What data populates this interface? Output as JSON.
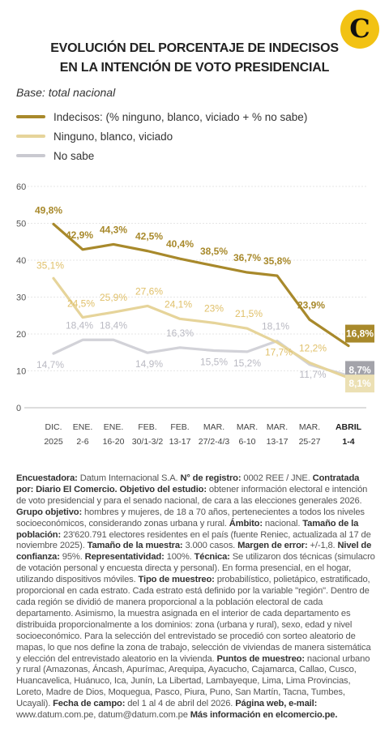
{
  "logo": {
    "letter": "C"
  },
  "title": {
    "line1": "EVOLUCIÓN DEL PORCENTAJE DE INDECISOS",
    "line2": "EN LA INTENCIÓN DE VOTO PRESIDENCIAL"
  },
  "base": "Base: total nacional",
  "legend": [
    {
      "label": "Indecisos: (% ninguno, blanco, viciado + % no sabe)",
      "color": "#a8892b"
    },
    {
      "label": "Ninguno, blanco, viciado",
      "color": "#e6d49a"
    },
    {
      "label": "No sabe",
      "color": "#c9c9d0"
    }
  ],
  "chart_data": {
    "type": "line",
    "y_ticks": [
      "60",
      "50",
      "40",
      "30",
      "20",
      "10",
      "0"
    ],
    "ylim": [
      0,
      60
    ],
    "x": [
      {
        "line1": "DIC.",
        "line2": "2025"
      },
      {
        "line1": "ENE.",
        "line2": "2-6"
      },
      {
        "line1": "ENE.",
        "line2": "16-20"
      },
      {
        "line1": "FEB.",
        "line2": "30/1-3/2"
      },
      {
        "line1": "FEB.",
        "line2": "13-17"
      },
      {
        "line1": "MAR.",
        "line2": "27/2-4/3"
      },
      {
        "line1": "MAR.",
        "line2": "6-10"
      },
      {
        "line1": "MAR.",
        "line2": "13-17"
      },
      {
        "line1": "MAR.",
        "line2": "25-27"
      },
      {
        "line1": "ABRIL",
        "line2": "1-4"
      }
    ],
    "series": [
      {
        "key": "indecisos",
        "color": "#a8892b",
        "label_color": "#a8892b",
        "values": [
          49.8,
          42.9,
          44.3,
          42.5,
          40.4,
          38.5,
          36.7,
          35.8,
          23.9,
          16.8
        ],
        "labels": [
          "49,8%",
          "42,9%",
          "44,3%",
          "42,5%",
          "40,4%",
          "38,5%",
          "36,7%",
          "35,8%",
          "23,9%",
          "16,8%"
        ]
      },
      {
        "key": "ninguno",
        "color": "#e6d49a",
        "label_color": "#e0c06a",
        "values": [
          35.1,
          24.5,
          25.9,
          27.6,
          24.1,
          23.0,
          21.5,
          17.7,
          12.2,
          8.1
        ],
        "labels": [
          "35,1%",
          "24,5%",
          "25,9%",
          "27,6%",
          "24,1%",
          "23%",
          "21,5%",
          "17,7%",
          "12,2%",
          "8,1%"
        ]
      },
      {
        "key": "nosabe",
        "color": "#d2d2d8",
        "label_color": "#b9b9c2",
        "values": [
          14.7,
          18.4,
          18.4,
          14.9,
          16.3,
          15.5,
          15.2,
          18.1,
          11.7,
          8.7
        ],
        "labels": [
          "14,7%",
          "18,4%",
          "18,4%",
          "14,9%",
          "16,3%",
          "15,5%",
          "15,2%",
          "18,1%",
          "11,7%",
          "8,7%"
        ]
      }
    ],
    "final_boxes": [
      {
        "label": "16,8%",
        "bg": "#a8892b",
        "fg": "#ffffff"
      },
      {
        "label": "8,7%",
        "bg": "#a3a3aa",
        "fg": "#ffffff"
      },
      {
        "label": "8,1%",
        "bg": "#ece0b4",
        "fg": "#ffffff"
      }
    ]
  },
  "footer": [
    {
      "b": "Encuestadora:",
      "t": " Datum Internacional S.A. "
    },
    {
      "b": "N° de registro:",
      "t": " 0002 REE / JNE. "
    },
    {
      "b": "Contratada por: Diario El Comercio.",
      "t": " "
    },
    {
      "b": "Objetivo del estudio:",
      "t": " obtener información electoral e intención de voto presidencial y para el senado nacional, de cara a las elecciones generales 2026. "
    },
    {
      "b": "Grupo objetivo:",
      "t": " hombres y mujeres, de 18 a 70 años, pertenecientes a todos los niveles socioeconómicos, considerando zonas urbana y rural. "
    },
    {
      "b": "Ámbito:",
      "t": " nacional. "
    },
    {
      "b": "Tamaño de la población:",
      "t": " 23'620.791 electores residentes en el país (fuente Reniec, actualizada al 17 de noviembre 2025). "
    },
    {
      "b": "Tamaño de la muestra:",
      "t": " 3.000 casos. "
    },
    {
      "b": "Margen de error:",
      "t": " +/-1,8. "
    },
    {
      "b": "Nivel de confianza:",
      "t": " 95%. "
    },
    {
      "b": "Representatividad:",
      "t": " 100%. "
    },
    {
      "b": "Técnica:",
      "t": " Se utilizaron dos técnicas (simulacro de votación personal y encuesta directa y personal). En forma presencial, en el hogar, utilizando dispositivos móviles. "
    },
    {
      "b": "Tipo de muestreo:",
      "t": " probabilístico, polietápico, estratificado, proporcional en cada estrato. Cada estrato está definido por la variable \"región\". Dentro de cada región se dividió de manera proporcional a la población electoral de cada departamento. Asimismo, la muestra asignada en el interior de cada departamento es distribuida proporcionalmente a los dominios: zona (urbana y rural), sexo, edad y nivel socioeconómico. Para la selección del entrevistado se procedió con sorteo aleatorio de mapas, lo que nos define la zona de trabajo, selección de viviendas de manera sistemática y elección del entrevistado aleatorio en la vivienda. "
    },
    {
      "b": "Puntos de muestreo:",
      "t": " nacional urbano y rural (Amazonas, Áncash, Apurímac, Arequipa, Ayacucho, Cajamarca, Callao, Cusco, Huancavelica, Huánuco, Ica, Junín, La Libertad, Lambayeque, Lima, Lima Provincias, Loreto, Madre de Dios, Moquegua, Pasco, Piura, Puno, San Martín, Tacna, Tumbes, Ucayali). "
    },
    {
      "b": "Fecha de campo:",
      "t": " del 1 al 4 de abril del 2026. "
    },
    {
      "b": "Página web, e-mail:",
      "t": " www.datum.com.pe, datum@datum.com.pe "
    },
    {
      "b": "Más información en elcomercio.pe.",
      "t": ""
    }
  ]
}
